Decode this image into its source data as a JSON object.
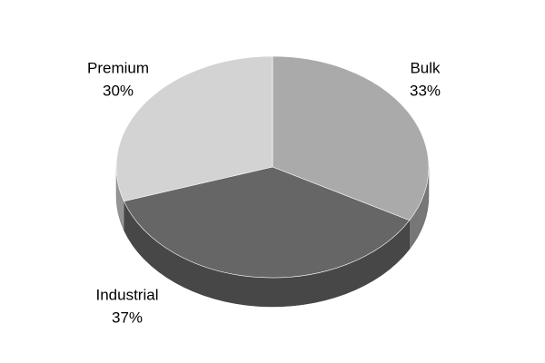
{
  "chart_data": {
    "type": "pie3d",
    "categories": [
      "Bulk",
      "Industrial",
      "Premium"
    ],
    "values": [
      33,
      37,
      30
    ],
    "value_labels": [
      "33%",
      "37%",
      "30%"
    ],
    "colors": [
      "#aaaaaa",
      "#666666",
      "#d3d3d3"
    ]
  }
}
